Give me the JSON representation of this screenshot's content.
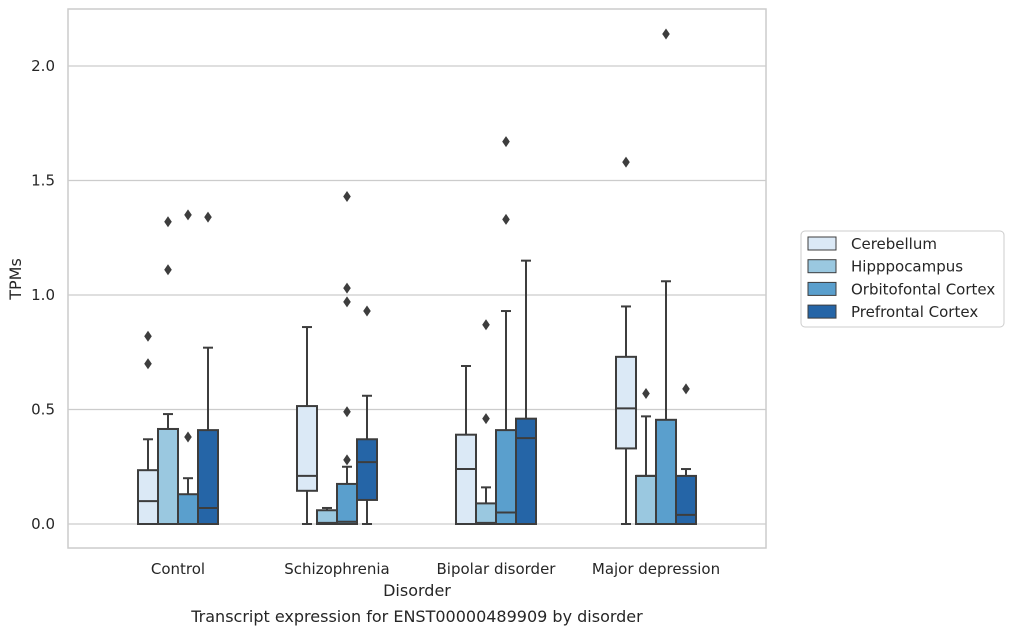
{
  "chart_data": {
    "type": "box",
    "caption": "Transcript expression for ENST00000489909 by disorder",
    "xlabel": "Disorder",
    "ylabel": "TPMs",
    "ylim": [
      -0.1,
      2.26
    ],
    "yticks": [
      0.0,
      0.5,
      1.0,
      1.5,
      2.0
    ],
    "ytick_labels": [
      "0.0",
      "0.5",
      "1.0",
      "1.5",
      "2.0"
    ],
    "grid": "horizontal",
    "legend_position": "right",
    "categories": [
      "Control",
      "Schizophrenia",
      "Bipolar disorder",
      "Major depression"
    ],
    "series": [
      {
        "name": "Cerebellum",
        "color": "#dbe9f6",
        "boxes": [
          {
            "q1": 0.0,
            "median": 0.1,
            "q3": 0.235,
            "whisker_low": 0.0,
            "whisker_high": 0.37,
            "outliers": [
              0.7,
              0.82
            ]
          },
          {
            "q1": 0.145,
            "median": 0.21,
            "q3": 0.515,
            "whisker_low": 0.0,
            "whisker_high": 0.86,
            "outliers": []
          },
          {
            "q1": 0.0,
            "median": 0.24,
            "q3": 0.39,
            "whisker_low": 0.0,
            "whisker_high": 0.69,
            "outliers": []
          },
          {
            "q1": 0.33,
            "median": 0.505,
            "q3": 0.73,
            "whisker_low": 0.0,
            "whisker_high": 0.95,
            "outliers": [
              1.58
            ]
          }
        ]
      },
      {
        "name": "Hipppocampus",
        "color": "#9ac8e0",
        "boxes": [
          {
            "q1": 0.0,
            "median": 0.415,
            "q3": 0.415,
            "whisker_low": 0.0,
            "whisker_high": 0.48,
            "outliers": [
              1.11,
              1.32
            ]
          },
          {
            "q1": 0.0,
            "median": 0.005,
            "q3": 0.06,
            "whisker_low": 0.0,
            "whisker_high": 0.07,
            "outliers": []
          },
          {
            "q1": 0.0,
            "median": 0.005,
            "q3": 0.09,
            "whisker_low": 0.0,
            "whisker_high": 0.16,
            "outliers": [
              0.46,
              0.87
            ]
          },
          {
            "q1": 0.0,
            "median": 0.21,
            "q3": 0.21,
            "whisker_low": 0.0,
            "whisker_high": 0.47,
            "outliers": [
              0.57
            ]
          }
        ]
      },
      {
        "name": "Orbitofontal Cortex",
        "color": "#5a9fcd",
        "boxes": [
          {
            "q1": 0.0,
            "median": 0.0,
            "q3": 0.13,
            "whisker_low": 0.0,
            "whisker_high": 0.2,
            "outliers": [
              0.38,
              1.35
            ]
          },
          {
            "q1": 0.0,
            "median": 0.01,
            "q3": 0.175,
            "whisker_low": 0.0,
            "whisker_high": 0.25,
            "outliers": [
              0.28,
              0.49,
              0.97,
              1.03,
              1.43
            ]
          },
          {
            "q1": 0.0,
            "median": 0.05,
            "q3": 0.41,
            "whisker_low": 0.0,
            "whisker_high": 0.93,
            "outliers": [
              1.33,
              1.67
            ]
          },
          {
            "q1": 0.0,
            "median": 0.0,
            "q3": 0.455,
            "whisker_low": 0.0,
            "whisker_high": 1.06,
            "outliers": [
              2.14
            ]
          }
        ]
      },
      {
        "name": "Prefrontal Cortex",
        "color": "#2565a7",
        "boxes": [
          {
            "q1": 0.0,
            "median": 0.07,
            "q3": 0.41,
            "whisker_low": 0.0,
            "whisker_high": 0.77,
            "outliers": [
              1.34
            ]
          },
          {
            "q1": 0.105,
            "median": 0.27,
            "q3": 0.37,
            "whisker_low": 0.0,
            "whisker_high": 0.56,
            "outliers": [
              0.93
            ]
          },
          {
            "q1": 0.0,
            "median": 0.375,
            "q3": 0.46,
            "whisker_low": 0.0,
            "whisker_high": 1.15,
            "outliers": []
          },
          {
            "q1": 0.0,
            "median": 0.04,
            "q3": 0.21,
            "whisker_low": 0.0,
            "whisker_high": 0.24,
            "outliers": [
              0.59
            ]
          }
        ]
      }
    ]
  }
}
